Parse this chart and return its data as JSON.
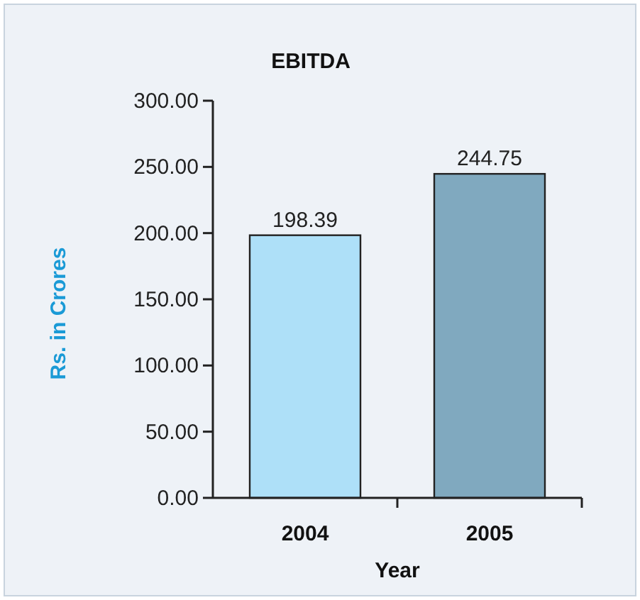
{
  "chart_data": {
    "type": "bar",
    "title": "EBITDA",
    "xlabel": "Year",
    "ylabel": "Rs. in Crores",
    "categories": [
      "2004",
      "2005"
    ],
    "values": [
      198.39,
      244.75
    ],
    "colors": [
      "#aee0f8",
      "#80a9bf"
    ],
    "ylim": [
      0,
      300
    ],
    "yticks": [
      {
        "value": 0,
        "label": "0.00"
      },
      {
        "value": 50,
        "label": "50.00"
      },
      {
        "value": 100,
        "label": "100.00"
      },
      {
        "value": 150,
        "label": "150.00"
      },
      {
        "value": 200,
        "label": "200.00"
      },
      {
        "value": 250,
        "label": "250.00"
      },
      {
        "value": 300,
        "label": "300.00"
      }
    ],
    "data_labels": true
  }
}
